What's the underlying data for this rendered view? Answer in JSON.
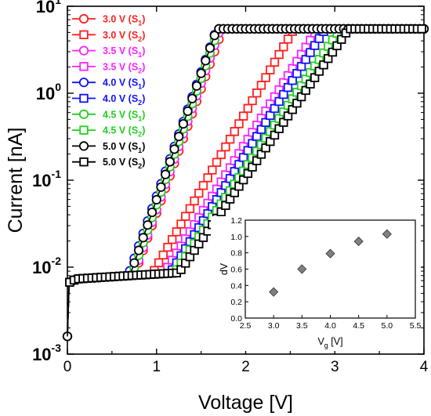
{
  "chart_data": [
    {
      "type": "line",
      "xlabel": "Voltage [V]",
      "ylabel": "Current [nA]",
      "xscale": "linear",
      "yscale": "log",
      "xlim": [
        0,
        4
      ],
      "ylim": [
        0.001,
        10
      ],
      "xticks": [
        0,
        1,
        2,
        3,
        4
      ],
      "xtick_labels": [
        "0",
        "1",
        "2",
        "3",
        "4"
      ],
      "yticks": [
        0.001,
        0.01,
        0.1,
        1,
        10
      ],
      "ytick_labels": [
        {
          "base": "10",
          "exp": "-3"
        },
        {
          "base": "10",
          "exp": "-2"
        },
        {
          "base": "10",
          "exp": "-1"
        },
        {
          "base": "10",
          "exp": "0"
        },
        {
          "base": "10",
          "exp": "1"
        }
      ],
      "legend_position": "top-left",
      "saturation_current": 5.5,
      "series": [
        {
          "name": "3.0 V (S1)",
          "label": {
            "main": "3.0 V (S",
            "sub": "1",
            "end": ")"
          },
          "color": "#FF2020",
          "marker": "circle",
          "knee": 0.75,
          "slope": 2.8
        },
        {
          "name": "3.0 V (S2)",
          "label": {
            "main": "3.0 V (S",
            "sub": "2",
            "end": ")"
          },
          "color": "#FF2020",
          "marker": "square",
          "knee": 0.95,
          "slope": 1.72
        },
        {
          "name": "3.5 V (S1)",
          "label": {
            "main": "3.5 V (S",
            "sub": "1",
            "end": ")"
          },
          "color": "#FF20FF",
          "marker": "circle",
          "knee": 0.74,
          "slope": 2.85
        },
        {
          "name": "3.5 V (S2)",
          "label": {
            "main": "3.5 V (S",
            "sub": "2",
            "end": ")"
          },
          "color": "#FF20FF",
          "marker": "square",
          "knee": 1.08,
          "slope": 1.58
        },
        {
          "name": "4.0 V (S1)",
          "label": {
            "main": "4.0 V (S",
            "sub": "1",
            "end": ")"
          },
          "color": "#1010FF",
          "marker": "circle",
          "knee": 0.68,
          "slope": 2.8
        },
        {
          "name": "4.0 V (S2)",
          "label": {
            "main": "4.0 V (S",
            "sub": "2",
            "end": ")"
          },
          "color": "#1010FF",
          "marker": "square",
          "knee": 1.15,
          "slope": 1.56
        },
        {
          "name": "4.5 V (S1)",
          "label": {
            "main": "4.5 V (S",
            "sub": "1",
            "end": ")"
          },
          "color": "#20D020",
          "marker": "circle",
          "knee": 0.72,
          "slope": 2.85
        },
        {
          "name": "4.5 V (S2)",
          "label": {
            "main": "4.5 V (S",
            "sub": "2",
            "end": ")"
          },
          "color": "#20D020",
          "marker": "square",
          "knee": 1.2,
          "slope": 1.46
        },
        {
          "name": "5.0 V (S1)",
          "label": {
            "main": "5.0 V (S",
            "sub": "1",
            "end": ")"
          },
          "color": "#000000",
          "marker": "circle",
          "knee": 0.7,
          "slope": 2.85
        },
        {
          "name": "5.0 V (S2)",
          "label": {
            "main": "5.0 V (S",
            "sub": "2",
            "end": ")"
          },
          "color": "#000000",
          "marker": "square",
          "knee": 1.25,
          "slope": 1.42
        }
      ]
    },
    {
      "type": "scatter",
      "inset": true,
      "xlabel": {
        "main": "V",
        "sub": "g",
        "end": " [V]"
      },
      "ylabel": "dV",
      "xlim": [
        2.5,
        5.5
      ],
      "ylim": [
        0,
        1.2
      ],
      "xticks": [
        "2.5",
        "3.0",
        "3.5",
        "4.0",
        "4.5",
        "5.0",
        "5.5"
      ],
      "yticks": [
        "0.0",
        "0.2",
        "0.4",
        "0.6",
        "0.8",
        "1.0",
        "1.2"
      ],
      "marker": "diamond",
      "color": "#808080",
      "points": [
        {
          "x": 3.0,
          "y": 0.32
        },
        {
          "x": 3.5,
          "y": 0.6
        },
        {
          "x": 4.0,
          "y": 0.79
        },
        {
          "x": 4.5,
          "y": 0.94
        },
        {
          "x": 5.0,
          "y": 1.03
        }
      ]
    }
  ]
}
